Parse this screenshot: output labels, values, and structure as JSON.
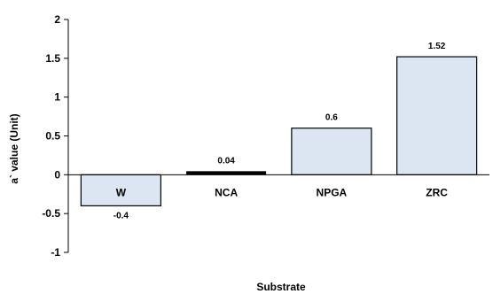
{
  "chart_data": {
    "type": "bar",
    "title": "",
    "xlabel": "Substrate",
    "ylabel": "a` value (Unit)",
    "categories": [
      "W",
      "NCA",
      "NPGA",
      "ZRC"
    ],
    "values": [
      -0.4,
      0.04,
      0.6,
      1.52
    ],
    "data_labels": [
      "-0.4",
      "0.04",
      "0.6",
      "1.52"
    ],
    "ylim": [
      -1,
      2
    ],
    "yticks": [
      -1,
      -0.5,
      0,
      0.5,
      1,
      1.5,
      2
    ],
    "ytick_labels": [
      "-1",
      "-0.5",
      "0",
      "0.5",
      "1",
      "1.5",
      "2"
    ],
    "grid": false,
    "legend": "none",
    "bar_fill": "#dce6f2",
    "bar_stroke": "#000000"
  }
}
